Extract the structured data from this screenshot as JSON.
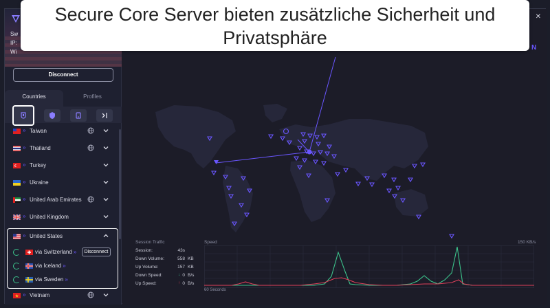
{
  "caption": {
    "line1": "Secure Core Server bieten zusätzliche Sicherheit und",
    "line2": "Privatsphäre"
  },
  "header": {
    "line1": "Sw",
    "line2": "IP:",
    "line3": "Wi",
    "brand_partial": "N"
  },
  "sidebar": {
    "disconnect_label": "Disconnect",
    "tabs": [
      {
        "label": "Countries",
        "active": true
      },
      {
        "label": "Profiles",
        "active": false
      }
    ],
    "filters": [
      {
        "icon": "secure-core-icon",
        "selected": true
      },
      {
        "icon": "shield-icon",
        "selected": false
      },
      {
        "icon": "p2p-icon",
        "selected": false
      },
      {
        "icon": "tor-icon",
        "selected": false
      }
    ],
    "countries": [
      {
        "name": "Taiwan",
        "arrows": "»",
        "globe": true,
        "flag": "tw"
      },
      {
        "name": "Thailand",
        "arrows": "»",
        "globe": true,
        "flag": "th"
      },
      {
        "name": "Turkey",
        "arrows": "»",
        "globe": false,
        "flag": "tr"
      },
      {
        "name": "Ukraine",
        "arrows": "»",
        "globe": false,
        "flag": "ua"
      },
      {
        "name": "United Arab Emirates",
        "arrows": "»",
        "globe": true,
        "flag": "ae"
      },
      {
        "name": "United Kingdom",
        "arrows": "»",
        "globe": false,
        "flag": "gb"
      },
      {
        "name": "United States",
        "arrows": "»",
        "globe": false,
        "flag": "us",
        "expanded": true
      },
      {
        "name": "Vietnam",
        "arrows": "»",
        "globe": true,
        "flag": "vn"
      }
    ],
    "us_servers": [
      {
        "name": "via Switzerland",
        "arrows": "»",
        "flag": "ch",
        "action": "Disconnect"
      },
      {
        "name": "via Iceland",
        "arrows": "»",
        "flag": "is"
      },
      {
        "name": "via Sweden",
        "arrows": "»",
        "flag": "se"
      }
    ]
  },
  "traffic": {
    "title": "Session Traffic",
    "speed_title": "Speed",
    "speed_max": "150 KB/s",
    "x_label": "60 Seconds",
    "stats": [
      {
        "label": "Session:",
        "value": "43s",
        "unit": ""
      },
      {
        "label": "Down Volume:",
        "value": "558",
        "unit": "KB"
      },
      {
        "label": "Up Volume:",
        "value": "157",
        "unit": "KB"
      },
      {
        "label": "Down Speed:",
        "value": "0",
        "unit": "B/s",
        "arrow": "↓"
      },
      {
        "label": "Up Speed:",
        "value": "0",
        "unit": "B/s",
        "arrow": "↑"
      }
    ]
  },
  "colors": {
    "accent": "#6a56ff",
    "down_line": "#3cc48c",
    "up_line": "#e0405a",
    "background": "#1c1c28"
  }
}
